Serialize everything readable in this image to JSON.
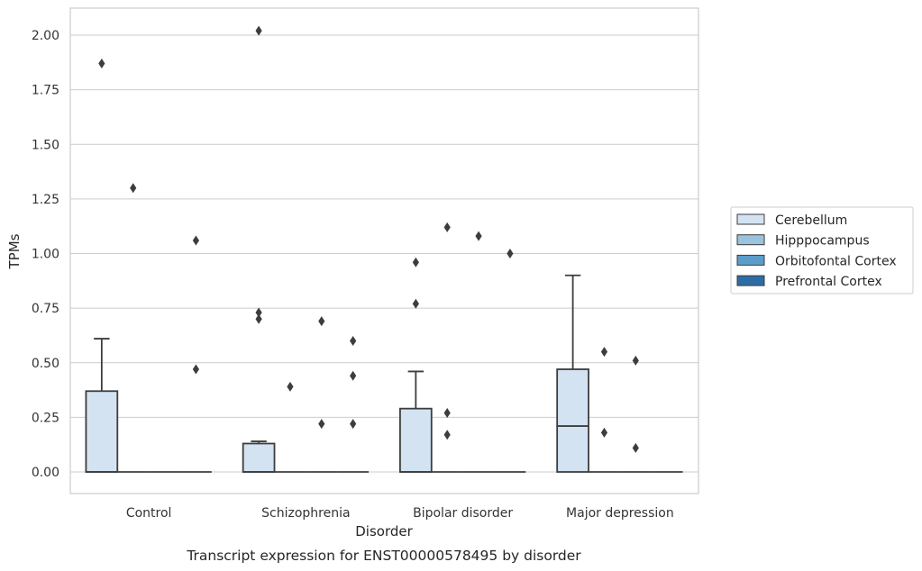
{
  "chart_data": {
    "type": "box",
    "caption": "Transcript expression for ENST00000578495 by disorder",
    "xlabel": "Disorder",
    "ylabel": "TPMs",
    "ylim": [
      -0.1,
      2.12
    ],
    "yticks": [
      0.0,
      0.25,
      0.5,
      0.75,
      1.0,
      1.25,
      1.5,
      1.75,
      2.0
    ],
    "ytick_labels": [
      "0.00",
      "0.25",
      "0.50",
      "0.75",
      "1.00",
      "1.25",
      "1.50",
      "1.75",
      "2.00"
    ],
    "grid": true,
    "legend_position": "right",
    "categories": [
      "Control",
      "Schizophrenia",
      "Bipolar disorder",
      "Major depression"
    ],
    "series": [
      {
        "name": "Cerebellum",
        "color": "#d3e3f2",
        "boxes": [
          {
            "q1": 0.0,
            "median": 0.0,
            "q3": 0.37,
            "whislo": 0.0,
            "whishi": 0.61,
            "fliers": [
              1.87
            ]
          },
          {
            "q1": 0.0,
            "median": 0.0,
            "q3": 0.13,
            "whislo": 0.0,
            "whishi": 0.14,
            "fliers": [
              0.7,
              0.73,
              2.02
            ]
          },
          {
            "q1": 0.0,
            "median": 0.0,
            "q3": 0.29,
            "whislo": 0.0,
            "whishi": 0.46,
            "fliers": [
              0.77,
              0.96
            ]
          },
          {
            "q1": 0.0,
            "median": 0.21,
            "q3": 0.47,
            "whislo": 0.0,
            "whishi": 0.9,
            "fliers": []
          }
        ]
      },
      {
        "name": "Hipppocampus",
        "color": "#9ac3dd",
        "boxes": [
          {
            "q1": 0.0,
            "median": 0.0,
            "q3": 0.0,
            "whislo": 0.0,
            "whishi": 0.0,
            "fliers": [
              1.3
            ]
          },
          {
            "q1": 0.0,
            "median": 0.0,
            "q3": 0.0,
            "whislo": 0.0,
            "whishi": 0.0,
            "fliers": [
              0.39
            ]
          },
          {
            "q1": 0.0,
            "median": 0.0,
            "q3": 0.0,
            "whislo": 0.0,
            "whishi": 0.0,
            "fliers": [
              0.17,
              0.27,
              1.12
            ]
          },
          {
            "q1": 0.0,
            "median": 0.0,
            "q3": 0.0,
            "whislo": 0.0,
            "whishi": 0.0,
            "fliers": [
              0.18,
              0.55
            ]
          }
        ]
      },
      {
        "name": "Orbitofontal Cortex",
        "color": "#5b9cc9",
        "boxes": [
          {
            "q1": 0.0,
            "median": 0.0,
            "q3": 0.0,
            "whislo": 0.0,
            "whishi": 0.0,
            "fliers": []
          },
          {
            "q1": 0.0,
            "median": 0.0,
            "q3": 0.0,
            "whislo": 0.0,
            "whishi": 0.0,
            "fliers": [
              0.22,
              0.69
            ]
          },
          {
            "q1": 0.0,
            "median": 0.0,
            "q3": 0.0,
            "whislo": 0.0,
            "whishi": 0.0,
            "fliers": [
              1.08
            ]
          },
          {
            "q1": 0.0,
            "median": 0.0,
            "q3": 0.0,
            "whislo": 0.0,
            "whishi": 0.0,
            "fliers": [
              0.11,
              0.51
            ]
          }
        ]
      },
      {
        "name": "Prefrontal Cortex",
        "color": "#2c6da6",
        "boxes": [
          {
            "q1": 0.0,
            "median": 0.0,
            "q3": 0.0,
            "whislo": 0.0,
            "whishi": 0.0,
            "fliers": [
              0.47,
              1.06
            ]
          },
          {
            "q1": 0.0,
            "median": 0.0,
            "q3": 0.0,
            "whislo": 0.0,
            "whishi": 0.0,
            "fliers": [
              0.22,
              0.44,
              0.6
            ]
          },
          {
            "q1": 0.0,
            "median": 0.0,
            "q3": 0.0,
            "whislo": 0.0,
            "whishi": 0.0,
            "fliers": [
              1.0
            ]
          },
          {
            "q1": 0.0,
            "median": 0.0,
            "q3": 0.0,
            "whislo": 0.0,
            "whishi": 0.0,
            "fliers": []
          }
        ]
      }
    ],
    "colors": {
      "grid": "#cccccc",
      "spine": "#cccccc",
      "box_edge": "#3d3d3d",
      "flier": "#3d3d3d"
    }
  }
}
